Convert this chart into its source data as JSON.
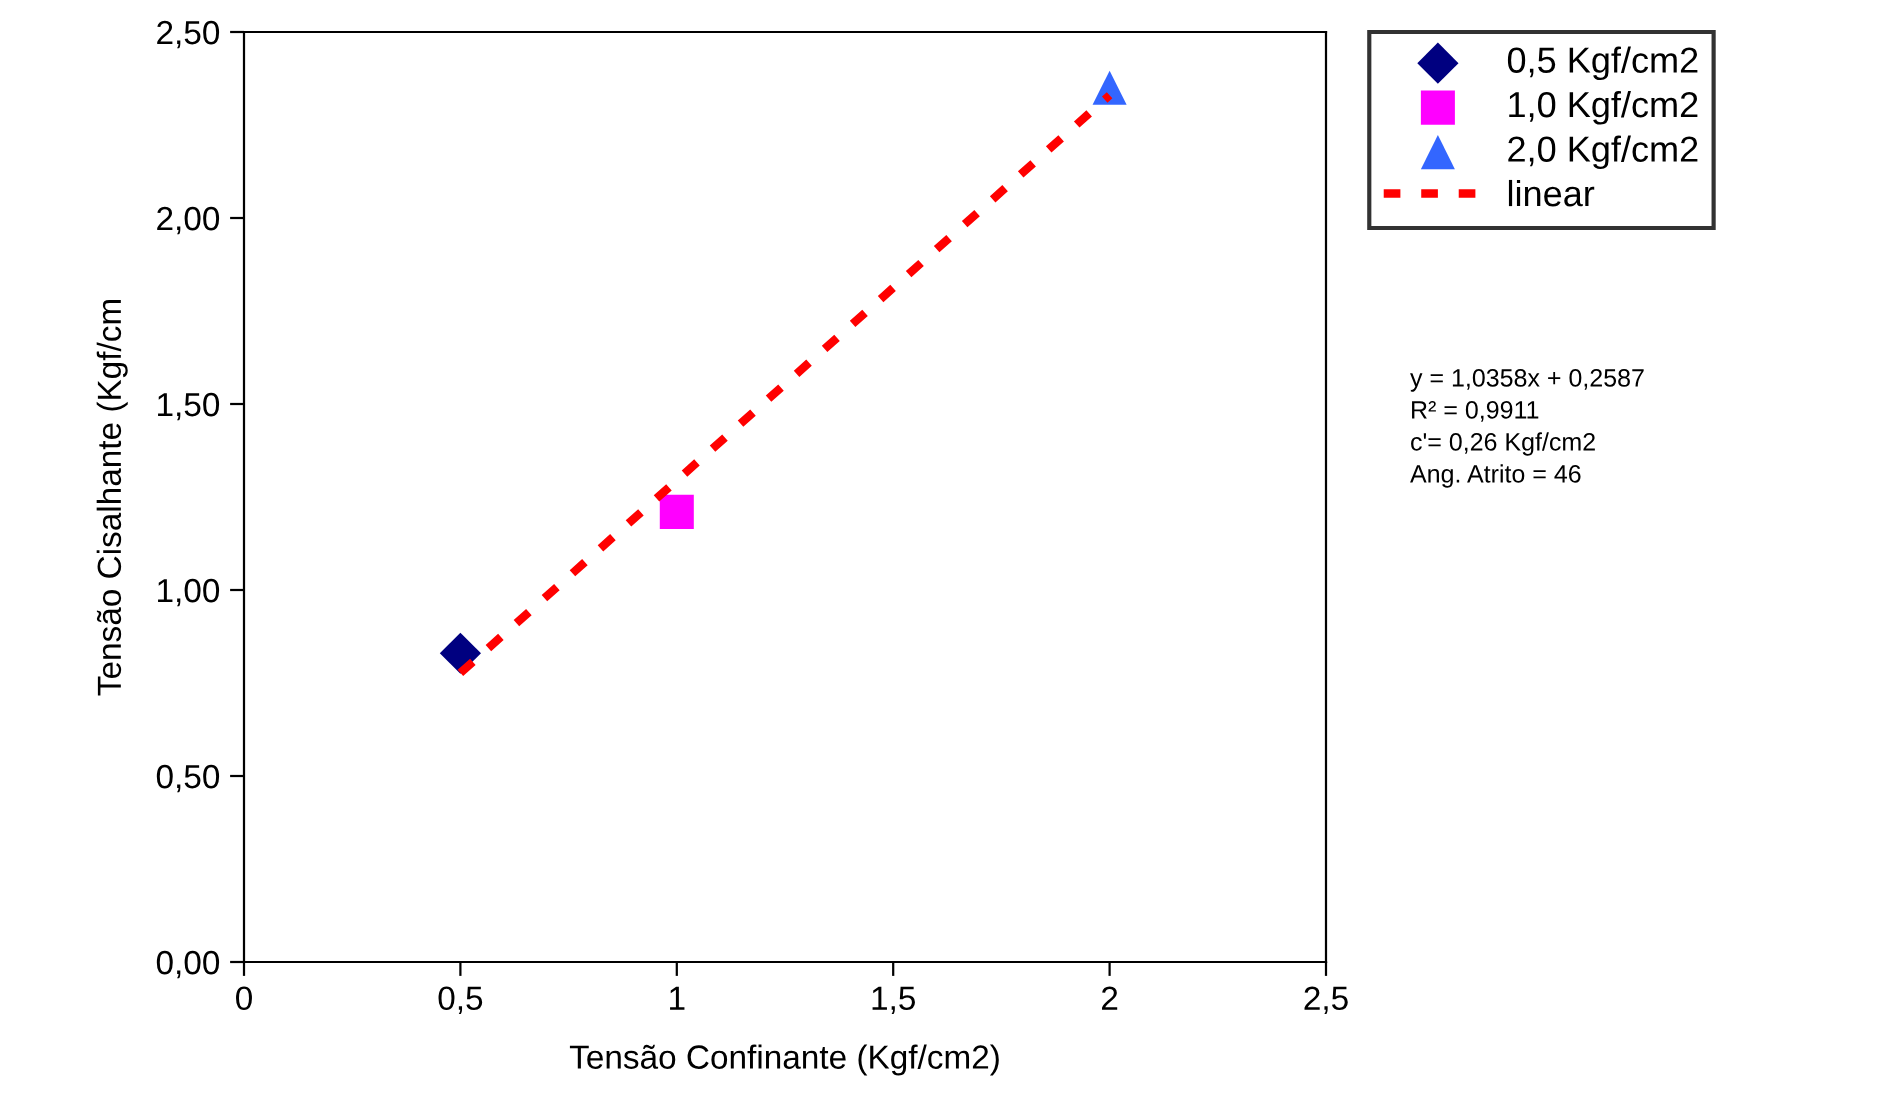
{
  "chart_data": {
    "type": "scatter",
    "xlabel": "Tensão Confinante (Kgf/cm2)",
    "ylabel": "Tensão Cisalhante (Kgf/cm",
    "series": [
      {
        "name": "0,5 Kgf/cm2",
        "color": "#000080",
        "marker": "diamond",
        "x": [
          0.5
        ],
        "values": [
          0.83
        ]
      },
      {
        "name": "1,0 Kgf/cm2",
        "color": "#ff00ff",
        "marker": "square",
        "x": [
          1.0
        ],
        "values": [
          1.21
        ]
      },
      {
        "name": "2,0 Kgf/cm2",
        "color": "#3366ff",
        "marker": "triangle",
        "x": [
          2.0
        ],
        "values": [
          2.35
        ]
      },
      {
        "name": "linear",
        "type": "line",
        "color": "#ff0000",
        "line_style": "dashed",
        "marker": "none",
        "x": [
          0.5,
          2.0
        ],
        "values": [
          0.777,
          2.33
        ]
      }
    ],
    "xlim": [
      0,
      2.5
    ],
    "xticks": [
      0,
      {
        "value": 0.5,
        "label": "0,5"
      },
      1,
      {
        "value": 1.5,
        "label": "1,5"
      },
      2,
      {
        "value": 2.5,
        "label": "2,5"
      }
    ],
    "ylim": [
      0,
      2.5
    ],
    "yticks": [
      {
        "value": 0,
        "label": "0,00"
      },
      {
        "value": 0.5,
        "label": "0,50"
      },
      {
        "value": 1.0,
        "label": "1,00"
      },
      {
        "value": 1.5,
        "label": "1,50"
      },
      {
        "value": 2.0,
        "label": "2,00"
      },
      {
        "value": 2.5,
        "label": "2,50"
      }
    ],
    "grid": false,
    "legend": "top right",
    "annotations": [
      "y = 1,0358x + 0,2587",
      "R² = 0,9911",
      "c'= 0,26 Kgf/cm2",
      "Ang. Atrito = 46"
    ]
  }
}
